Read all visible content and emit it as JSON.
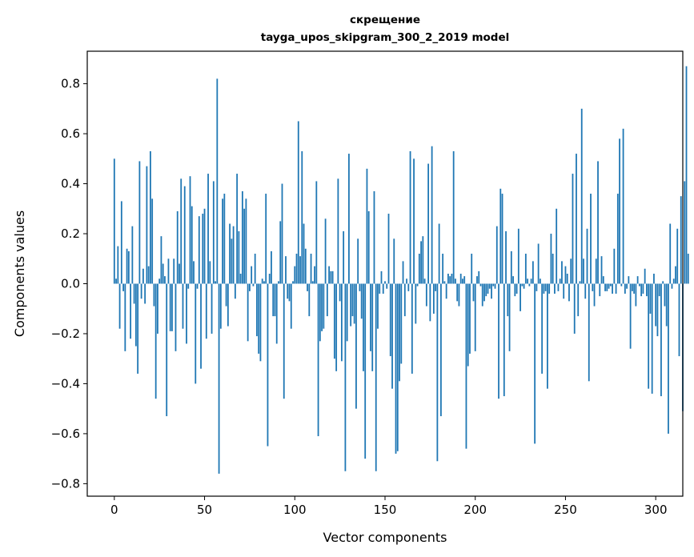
{
  "chart_data": {
    "type": "bar",
    "title": "скрещение",
    "subtitle": "tayga_upos_skipgram_300_2_2019 model",
    "xlabel": "Vector components",
    "ylabel": "Components values",
    "xlim": [
      -15,
      315
    ],
    "ylim": [
      -0.85,
      0.93
    ],
    "xticks": [
      0,
      50,
      100,
      150,
      200,
      250,
      300
    ],
    "yticks": [
      -0.8,
      -0.6,
      -0.4,
      -0.2,
      0.0,
      0.2,
      0.4,
      0.6,
      0.8
    ],
    "ytick_labels": [
      "−0.8",
      "−0.6",
      "−0.4",
      "−0.2",
      "0.0",
      "0.2",
      "0.4",
      "0.6",
      "0.8"
    ],
    "bar_color": "#1f77b4",
    "values": [
      0.5,
      0.02,
      0.15,
      -0.18,
      0.33,
      -0.03,
      -0.27,
      0.14,
      0.13,
      -0.22,
      0.23,
      -0.08,
      -0.25,
      -0.36,
      0.49,
      -0.06,
      0.06,
      -0.08,
      0.47,
      0.07,
      0.53,
      0.34,
      -0.09,
      -0.46,
      -0.2,
      0.02,
      0.19,
      0.08,
      0.03,
      -0.53,
      0.1,
      -0.19,
      -0.19,
      0.1,
      -0.27,
      0.29,
      0.08,
      0.42,
      -0.18,
      0.39,
      -0.24,
      -0.02,
      0.43,
      0.31,
      0.09,
      -0.4,
      -0.02,
      0.27,
      -0.34,
      0.28,
      0.3,
      -0.22,
      0.44,
      0.09,
      -0.2,
      0.41,
      0.01,
      0.82,
      -0.76,
      -0.18,
      0.34,
      0.36,
      -0.09,
      -0.17,
      0.24,
      0.18,
      0.23,
      -0.06,
      0.44,
      0.21,
      0.04,
      0.37,
      0.3,
      0.34,
      -0.23,
      -0.03,
      0.07,
      -0.01,
      0.12,
      -0.21,
      -0.28,
      -0.31,
      0.02,
      0.01,
      0.36,
      -0.65,
      0.04,
      0.13,
      -0.13,
      -0.13,
      -0.24,
      0.01,
      0.25,
      0.4,
      -0.46,
      0.11,
      -0.06,
      -0.07,
      -0.18,
      0.01,
      0.07,
      0.12,
      0.65,
      0.11,
      0.53,
      0.24,
      0.14,
      -0.03,
      -0.13,
      0.12,
      0.01,
      0.07,
      0.41,
      -0.61,
      -0.23,
      -0.19,
      -0.18,
      0.26,
      -0.13,
      0.07,
      0.05,
      0.05,
      -0.3,
      -0.35,
      0.42,
      -0.07,
      -0.31,
      0.21,
      -0.75,
      -0.23,
      0.52,
      -0.17,
      -0.13,
      -0.16,
      -0.5,
      0.18,
      -0.03,
      -0.14,
      -0.35,
      -0.7,
      0.46,
      0.29,
      -0.27,
      -0.35,
      0.37,
      -0.75,
      -0.18,
      -0.04,
      0.05,
      -0.04,
      0.01,
      -0.02,
      0.28,
      -0.29,
      -0.42,
      0.18,
      -0.68,
      -0.67,
      -0.39,
      -0.32,
      0.09,
      -0.13,
      0.02,
      -0.03,
      0.53,
      -0.36,
      0.5,
      -0.16,
      -0.01,
      0.12,
      0.17,
      0.19,
      0.02,
      -0.09,
      0.48,
      -0.15,
      0.55,
      -0.12,
      -0.03,
      -0.71,
      0.24,
      -0.53,
      0.12,
      0.01,
      -0.06,
      0.04,
      0.03,
      0.04,
      0.53,
      0.02,
      -0.07,
      -0.09,
      0.04,
      0.02,
      0.03,
      -0.66,
      -0.33,
      -0.28,
      0.12,
      -0.07,
      -0.27,
      0.03,
      0.05,
      -0.01,
      -0.09,
      -0.07,
      -0.05,
      -0.04,
      -0.02,
      -0.06,
      -0.01,
      -0.02,
      0.23,
      -0.46,
      0.38,
      0.36,
      -0.45,
      0.21,
      -0.13,
      -0.27,
      0.13,
      0.03,
      -0.05,
      -0.04,
      0.22,
      -0.11,
      -0.01,
      -0.02,
      0.12,
      0.02,
      -0.01,
      0.02,
      0.09,
      -0.64,
      -0.03,
      0.16,
      0.02,
      -0.36,
      -0.04,
      -0.03,
      -0.42,
      -0.04,
      0.2,
      0.12,
      -0.04,
      0.3,
      -0.03,
      0.02,
      0.09,
      -0.06,
      0.07,
      0.04,
      -0.07,
      0.1,
      0.44,
      -0.2,
      0.52,
      -0.13,
      0.01,
      0.7,
      0.1,
      -0.06,
      0.22,
      -0.39,
      0.36,
      -0.03,
      -0.09,
      0.1,
      0.49,
      -0.05,
      0.11,
      0.03,
      -0.03,
      -0.03,
      -0.02,
      -0.01,
      -0.04,
      0.14,
      -0.04,
      0.36,
      0.58,
      -0.01,
      0.62,
      -0.04,
      -0.02,
      0.03,
      -0.26,
      -0.03,
      -0.04,
      -0.09,
      0.03,
      -0.01,
      -0.05,
      -0.04,
      0.06,
      -0.05,
      -0.42,
      -0.12,
      -0.44,
      0.04,
      -0.17,
      -0.21,
      -0.05,
      -0.45,
      0.01,
      -0.09,
      -0.17,
      -0.6,
      0.24,
      -0.02,
      0.02,
      0.07,
      0.22,
      -0.29,
      0.35,
      -0.51,
      0.41,
      0.87,
      0.12
    ]
  }
}
